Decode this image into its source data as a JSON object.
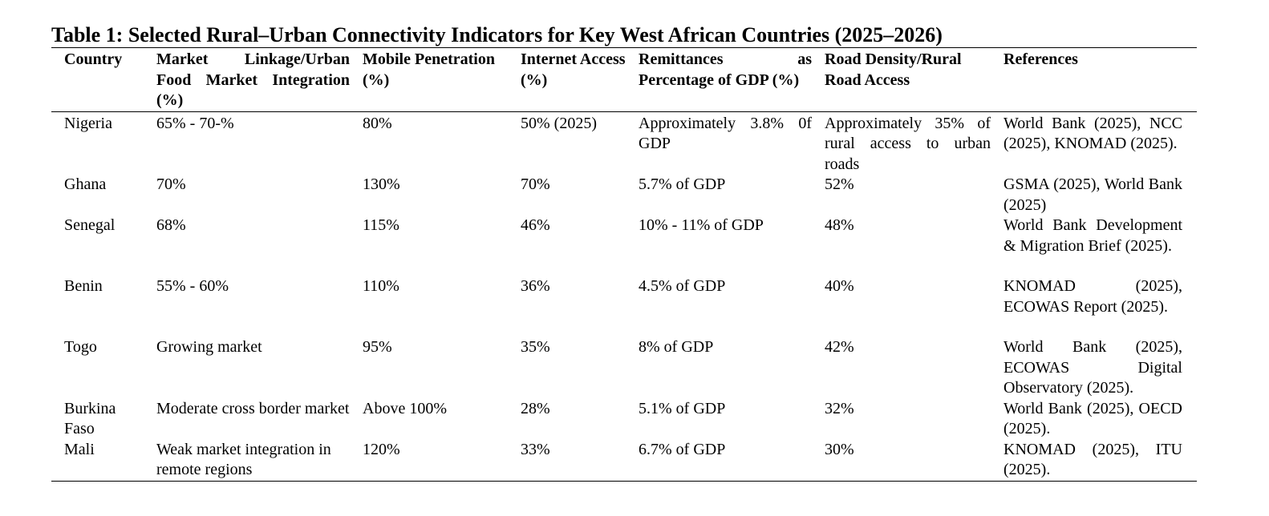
{
  "title": "Table 1: Selected Rural–Urban Connectivity Indicators for Key West African Countries (2025–2026)",
  "headers": [
    "Country",
    "Market Linkage/Urban Food Market Integration (%)",
    "Mobile Penetration (%)",
    "Internet Access (%)",
    "Remittances as Percentage of GDP (%)",
    "Road Density/Rural Road Access",
    "References"
  ],
  "rows": [
    {
      "country": "Nigeria",
      "market": "65% - 70-%",
      "mobile": "80%",
      "internet": "50% (2025)",
      "remittances": "Approximately 3.8% 0f GDP",
      "road": "Approximately 35% of rural access to urban roads",
      "references": "World Bank (2025), NCC (2025), KNOMAD (2025)."
    },
    {
      "country": "Ghana",
      "market": "70%",
      "mobile": "130%",
      "internet": "70%",
      "remittances": "5.7% of GDP",
      "road": "52%",
      "references": "GSMA (2025), World Bank (2025)"
    },
    {
      "country": "Senegal",
      "market": "68%",
      "mobile": "115%",
      "internet": "46%",
      "remittances": "10% - 11% of GDP",
      "road": "48%",
      "references": "World Bank Development & Migration Brief (2025)."
    },
    {
      "country": "Benin",
      "market": "55% - 60%",
      "mobile": "110%",
      "internet": "36%",
      "remittances": "4.5% of GDP",
      "road": "40%",
      "references": "KNOMAD (2025), ECOWAS Report (2025)."
    },
    {
      "country": "Togo",
      "market": "Growing market",
      "mobile": "95%",
      "internet": "35%",
      "remittances": "8% of GDP",
      "road": "42%",
      "references": "World Bank (2025), ECOWAS Digital Observatory (2025)."
    },
    {
      "country": "Burkina Faso",
      "market": "Moderate cross border market",
      "mobile": "Above 100%",
      "internet": "28%",
      "remittances": "5.1% of GDP",
      "road": "32%",
      "references": "World Bank (2025), OECD (2025)."
    },
    {
      "country": "Mali",
      "market": "Weak market integration in remote regions",
      "mobile": "120%",
      "internet": "33%",
      "remittances": "6.7% of GDP",
      "road": "30%",
      "references": "KNOMAD (2025), ITU (2025)."
    }
  ]
}
